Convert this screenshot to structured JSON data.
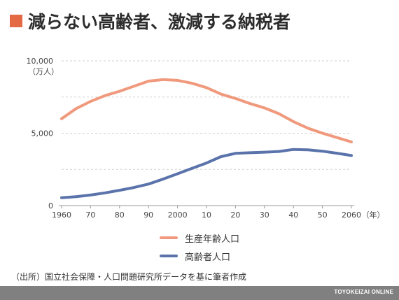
{
  "title": "減らない高齢者、激減する納税者",
  "source": "（出所）国立社会保障・人口問題研究所データを基に筆者作成",
  "brand": "TOYOKEIZAI ONLINE",
  "colors": {
    "accent": "#e46a43",
    "working": "#f0997c",
    "elderly": "#5a73ab"
  },
  "chart_data": {
    "type": "line",
    "x": [
      1960,
      1965,
      1970,
      1975,
      1980,
      1985,
      1990,
      1995,
      2000,
      2005,
      2010,
      2015,
      2020,
      2025,
      2030,
      2035,
      2040,
      2045,
      2050,
      2055,
      2060
    ],
    "x_tick_values": [
      1960,
      1970,
      1980,
      1990,
      2000,
      2010,
      2020,
      2030,
      2040,
      2050,
      2060
    ],
    "x_tick_labels": [
      "1960",
      "70",
      "80",
      "90",
      "2000",
      "10",
      "20",
      "30",
      "40",
      "50",
      "2060"
    ],
    "x_unit": "（年）",
    "y_ticks": [
      0,
      5000,
      10000
    ],
    "y_tick_labels": [
      "0",
      "5,000",
      "10,000"
    ],
    "y_unit": "（万人）",
    "ylim": [
      0,
      10000
    ],
    "grid": true,
    "legend_position": "bottom",
    "series": [
      {
        "name": "生産年齢人口",
        "color": "#f0997c",
        "values": [
          6000,
          6700,
          7200,
          7600,
          7900,
          8250,
          8600,
          8700,
          8650,
          8450,
          8150,
          7700,
          7400,
          7050,
          6750,
          6350,
          5800,
          5350,
          5000,
          4700,
          4400
        ]
      },
      {
        "name": "高齢者人口",
        "color": "#5a73ab",
        "values": [
          540,
          620,
          730,
          880,
          1060,
          1250,
          1490,
          1830,
          2200,
          2570,
          2940,
          3380,
          3610,
          3650,
          3690,
          3740,
          3880,
          3850,
          3760,
          3620,
          3460
        ]
      }
    ]
  }
}
